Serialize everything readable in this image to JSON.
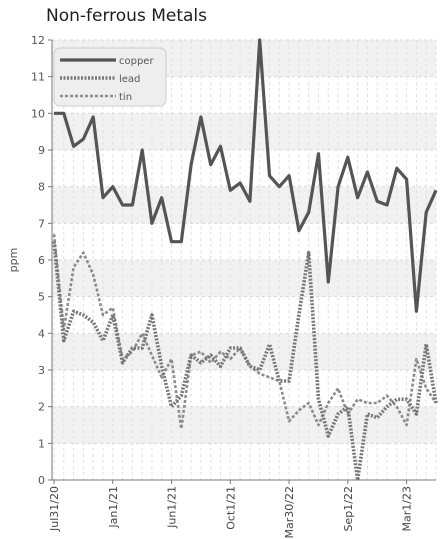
{
  "chart_data": {
    "type": "line",
    "title": "Non-ferrous Metals",
    "ylabel": "ppm",
    "xlabel": "",
    "ylim": [
      0,
      12
    ],
    "yticks": [
      0,
      1,
      2,
      3,
      4,
      5,
      6,
      7,
      8,
      9,
      10,
      11,
      12
    ],
    "grid": true,
    "legend_position": "top-left",
    "x_tick_labels": [
      {
        "label": "Jul31/20",
        "index": 0
      },
      {
        "label": "Jan1/21",
        "index": 6
      },
      {
        "label": "Jun1/21",
        "index": 12
      },
      {
        "label": "Oct1/21",
        "index": 18
      },
      {
        "label": "Mar30/22",
        "index": 24
      },
      {
        "label": "Sep1/22",
        "index": 30
      },
      {
        "label": "Mar1/23",
        "index": 36
      },
      {
        "label": "Oct1/23",
        "index": 42
      }
    ],
    "series": [
      {
        "name": "copper",
        "color": "#555555",
        "style": "solid",
        "values": [
          10.0,
          10.0,
          9.1,
          9.3,
          9.9,
          7.7,
          8.0,
          7.5,
          7.5,
          9.0,
          7.0,
          7.7,
          6.5,
          6.5,
          8.6,
          9.9,
          8.6,
          9.1,
          7.9,
          8.1,
          7.6,
          12.0,
          8.3,
          8.0,
          8.3,
          6.8,
          7.3,
          8.9,
          5.4,
          8.0,
          8.8,
          7.7,
          8.4,
          7.6,
          7.5,
          8.5,
          8.2,
          4.6,
          7.3,
          7.9
        ]
      },
      {
        "name": "lead",
        "color": "#777777",
        "style": "dotted",
        "values": [
          6.5,
          3.8,
          4.6,
          4.5,
          4.3,
          3.8,
          4.5,
          3.2,
          3.6,
          3.6,
          4.5,
          3.1,
          2.0,
          2.3,
          3.4,
          3.2,
          3.4,
          3.1,
          3.6,
          3.6,
          3.1,
          3.0,
          3.7,
          2.7,
          2.7,
          4.5,
          6.2,
          2.2,
          1.2,
          1.8,
          2.0,
          0.0,
          1.8,
          1.7,
          2.0,
          2.2,
          2.2,
          1.8,
          3.7,
          2.1
        ]
      },
      {
        "name": "tin",
        "color": "#8c8c8c",
        "style": "dashed",
        "values": [
          6.7,
          4.1,
          5.8,
          6.2,
          5.6,
          4.5,
          4.7,
          3.3,
          3.5,
          4.0,
          3.4,
          2.8,
          3.3,
          1.4,
          3.4,
          3.5,
          3.2,
          3.5,
          3.3,
          3.6,
          3.1,
          2.9,
          2.8,
          2.7,
          1.6,
          1.9,
          2.1,
          1.5,
          2.1,
          2.5,
          1.8,
          2.2,
          2.1,
          2.1,
          2.3,
          2.0,
          1.5,
          3.3,
          2.5,
          2.1
        ]
      }
    ]
  }
}
